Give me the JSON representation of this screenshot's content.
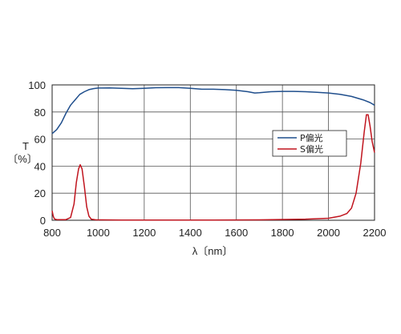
{
  "chart_data": {
    "type": "line",
    "title": "",
    "xlabel": "λ〔nm〕",
    "ylabel_lines": [
      "T",
      "〔%〕"
    ],
    "xlim": [
      800,
      2200
    ],
    "ylim": [
      0,
      100
    ],
    "xticks": [
      "800",
      "1000",
      "1200",
      "1400",
      "1600",
      "1800",
      "2000",
      "2200"
    ],
    "yticks": [
      "0",
      "20",
      "40",
      "60",
      "80",
      "100"
    ],
    "grid": true,
    "legend_position": "right",
    "series": [
      {
        "name": "P偏光",
        "color": "#1f4e8c",
        "points": [
          [
            800,
            64
          ],
          [
            820,
            67
          ],
          [
            840,
            72
          ],
          [
            860,
            79
          ],
          [
            880,
            85
          ],
          [
            900,
            89
          ],
          [
            920,
            93
          ],
          [
            940,
            95
          ],
          [
            960,
            96.5
          ],
          [
            980,
            97.3
          ],
          [
            1000,
            97.7
          ],
          [
            1050,
            97.8
          ],
          [
            1100,
            97.5
          ],
          [
            1150,
            97.2
          ],
          [
            1200,
            97.5
          ],
          [
            1250,
            97.9
          ],
          [
            1300,
            98
          ],
          [
            1350,
            98
          ],
          [
            1400,
            97.5
          ],
          [
            1450,
            96.8
          ],
          [
            1500,
            96.8
          ],
          [
            1550,
            96.5
          ],
          [
            1600,
            96
          ],
          [
            1650,
            95
          ],
          [
            1680,
            94
          ],
          [
            1700,
            94.2
          ],
          [
            1750,
            95
          ],
          [
            1800,
            95.2
          ],
          [
            1850,
            95.2
          ],
          [
            1900,
            95
          ],
          [
            1950,
            94.5
          ],
          [
            2000,
            94
          ],
          [
            2050,
            93
          ],
          [
            2100,
            91.5
          ],
          [
            2150,
            89
          ],
          [
            2180,
            87
          ],
          [
            2200,
            85
          ]
        ]
      },
      {
        "name": "S偏光",
        "color": "#c0141e",
        "points": [
          [
            800,
            7
          ],
          [
            805,
            3
          ],
          [
            810,
            1
          ],
          [
            820,
            0.5
          ],
          [
            860,
            0.5
          ],
          [
            880,
            2
          ],
          [
            895,
            12
          ],
          [
            905,
            28
          ],
          [
            915,
            38
          ],
          [
            922,
            41
          ],
          [
            930,
            38
          ],
          [
            940,
            25
          ],
          [
            950,
            10
          ],
          [
            960,
            3
          ],
          [
            970,
            0.8
          ],
          [
            990,
            0.3
          ],
          [
            1100,
            0.2
          ],
          [
            1300,
            0.2
          ],
          [
            1500,
            0.2
          ],
          [
            1700,
            0.3
          ],
          [
            1900,
            0.8
          ],
          [
            2000,
            1.5
          ],
          [
            2050,
            3
          ],
          [
            2080,
            5
          ],
          [
            2100,
            9
          ],
          [
            2120,
            20
          ],
          [
            2140,
            42
          ],
          [
            2155,
            65
          ],
          [
            2165,
            78
          ],
          [
            2172,
            78
          ],
          [
            2180,
            70
          ],
          [
            2190,
            58
          ],
          [
            2200,
            50
          ]
        ]
      }
    ]
  }
}
